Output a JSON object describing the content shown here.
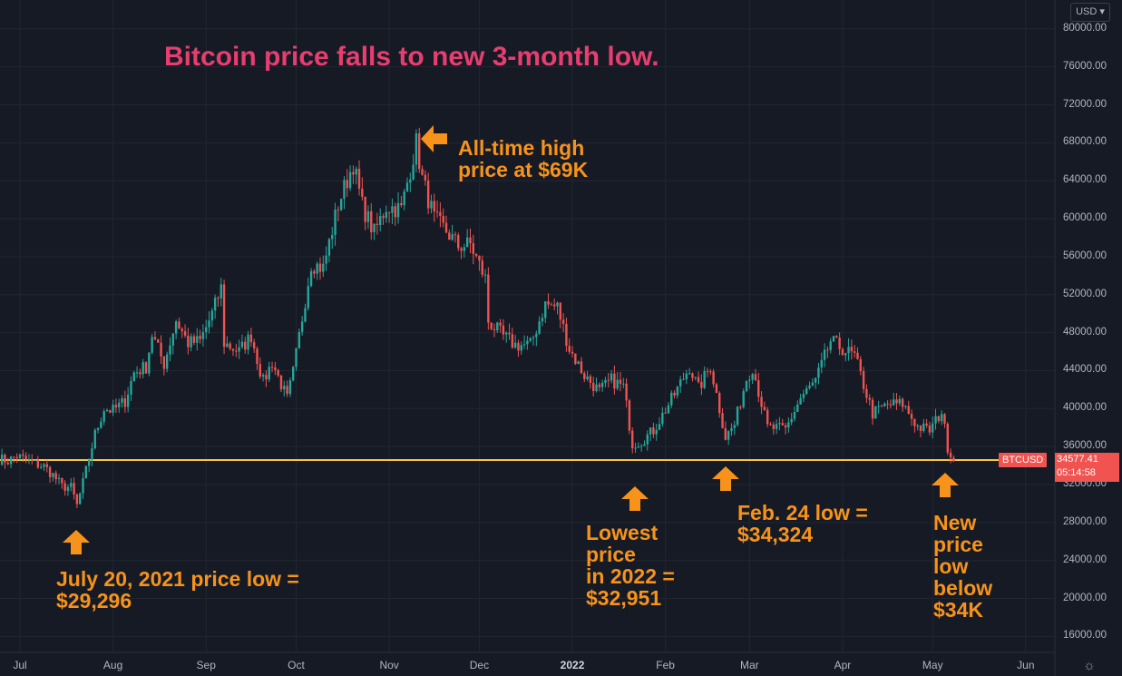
{
  "header": {
    "title": "Bitcoin price falls to new 3-month low.",
    "currency": "USD"
  },
  "price_tag": {
    "symbol": "BTCUSD",
    "price": "34577.41",
    "countdown": "05:14:58"
  },
  "annotations": {
    "ath": "All-time high\nprice at $69K",
    "july_low": "July 20, 2021 price low =\n$29,296",
    "low_2022": "Lowest\nprice\nin 2022 =\n$32,951",
    "feb_low": "Feb. 24 low =\n$34,324",
    "new_low": "New\nprice\nlow\nbelow\n$34K"
  },
  "colors": {
    "up": "#26a69a",
    "down": "#ef5350",
    "title": "#e83e6f",
    "annotation": "#f7931a",
    "support_line": "#f5c542",
    "background": "#161a25"
  },
  "chart_data": {
    "type": "candlestick",
    "title": "Bitcoin price falls to new 3-month low.",
    "symbol": "BTCUSD",
    "y_axis": {
      "min": 14000,
      "max": 82000,
      "position": "right",
      "ticks": [
        "80000.00",
        "76000.00",
        "72000.00",
        "68000.00",
        "64000.00",
        "60000.00",
        "56000.00",
        "52000.00",
        "48000.00",
        "44000.00",
        "40000.00",
        "36000.00",
        "32000.00",
        "28000.00",
        "24000.00",
        "20000.00",
        "16000.00"
      ]
    },
    "x_axis": {
      "ticks": [
        {
          "label": "Jul",
          "date": "2021-07-01"
        },
        {
          "label": "Aug",
          "date": "2021-08-01"
        },
        {
          "label": "Sep",
          "date": "2021-09-01"
        },
        {
          "label": "Oct",
          "date": "2021-10-01"
        },
        {
          "label": "Nov",
          "date": "2021-11-01"
        },
        {
          "label": "Dec",
          "date": "2021-12-01"
        },
        {
          "label": "2022",
          "date": "2022-01-01",
          "bold": true
        },
        {
          "label": "Feb",
          "date": "2022-02-01"
        },
        {
          "label": "Mar",
          "date": "2022-03-01"
        },
        {
          "label": "Apr",
          "date": "2022-04-01"
        },
        {
          "label": "May",
          "date": "2022-05-01"
        },
        {
          "label": "Jun",
          "date": "2022-06-01"
        }
      ]
    },
    "horizontal_line": 34577.41,
    "close_path": [
      [
        "2021-06-24",
        34700
      ],
      [
        "2021-06-27",
        34500
      ],
      [
        "2021-06-30",
        35000
      ],
      [
        "2021-07-03",
        34600
      ],
      [
        "2021-07-06",
        34200
      ],
      [
        "2021-07-09",
        33900
      ],
      [
        "2021-07-12",
        33000
      ],
      [
        "2021-07-15",
        31800
      ],
      [
        "2021-07-18",
        31700
      ],
      [
        "2021-07-20",
        29800
      ],
      [
        "2021-07-22",
        32200
      ],
      [
        "2021-07-26",
        37300
      ],
      [
        "2021-07-29",
        40000
      ],
      [
        "2021-08-01",
        39800
      ],
      [
        "2021-08-05",
        40800
      ],
      [
        "2021-08-08",
        43800
      ],
      [
        "2021-08-12",
        44400
      ],
      [
        "2021-08-14",
        47800
      ],
      [
        "2021-08-18",
        44700
      ],
      [
        "2021-08-22",
        49300
      ],
      [
        "2021-08-26",
        46900
      ],
      [
        "2021-08-30",
        47100
      ],
      [
        "2021-09-03",
        50000
      ],
      [
        "2021-09-06",
        52700
      ],
      [
        "2021-09-07",
        46900
      ],
      [
        "2021-09-12",
        46000
      ],
      [
        "2021-09-16",
        47700
      ],
      [
        "2021-09-20",
        42800
      ],
      [
        "2021-09-23",
        44900
      ],
      [
        "2021-09-28",
        41000
      ],
      [
        "2021-09-30",
        43800
      ],
      [
        "2021-10-06",
        55300
      ],
      [
        "2021-10-10",
        54800
      ],
      [
        "2021-10-15",
        61500
      ],
      [
        "2021-10-20",
        65800
      ],
      [
        "2021-10-23",
        61400
      ],
      [
        "2021-10-27",
        58500
      ],
      [
        "2021-10-31",
        61300
      ],
      [
        "2021-11-05",
        61000
      ],
      [
        "2021-11-10",
        68000
      ],
      [
        "2021-11-12",
        64200
      ],
      [
        "2021-11-16",
        60000
      ],
      [
        "2021-11-20",
        58700
      ],
      [
        "2021-11-24",
        57100
      ],
      [
        "2021-11-28",
        57300
      ],
      [
        "2021-12-03",
        53700
      ],
      [
        "2021-12-04",
        49200
      ],
      [
        "2021-12-09",
        47600
      ],
      [
        "2021-12-13",
        46700
      ],
      [
        "2021-12-18",
        46700
      ],
      [
        "2021-12-23",
        51000
      ],
      [
        "2021-12-27",
        50700
      ],
      [
        "2021-12-31",
        46300
      ],
      [
        "2022-01-05",
        43500
      ],
      [
        "2022-01-10",
        41800
      ],
      [
        "2022-01-14",
        43000
      ],
      [
        "2022-01-18",
        42300
      ],
      [
        "2022-01-21",
        36300
      ],
      [
        "2022-01-24",
        36600
      ],
      [
        "2022-01-28",
        37700
      ],
      [
        "2022-02-04",
        41500
      ],
      [
        "2022-02-09",
        44400
      ],
      [
        "2022-02-12",
        42100
      ],
      [
        "2022-02-16",
        44500
      ],
      [
        "2022-02-21",
        37000
      ],
      [
        "2022-02-24",
        38300
      ],
      [
        "2022-02-28",
        43200
      ],
      [
        "2022-03-02",
        44400
      ],
      [
        "2022-03-07",
        38000
      ],
      [
        "2022-03-13",
        37800
      ],
      [
        "2022-03-18",
        41100
      ],
      [
        "2022-03-23",
        42900
      ],
      [
        "2022-03-28",
        47100
      ],
      [
        "2022-04-01",
        46300
      ],
      [
        "2022-04-05",
        45500
      ],
      [
        "2022-04-11",
        39500
      ],
      [
        "2022-04-16",
        40400
      ],
      [
        "2022-04-21",
        40500
      ],
      [
        "2022-04-26",
        38100
      ],
      [
        "2022-04-30",
        37700
      ],
      [
        "2022-05-04",
        39700
      ],
      [
        "2022-05-06",
        36000
      ],
      [
        "2022-05-08",
        34577
      ]
    ]
  }
}
